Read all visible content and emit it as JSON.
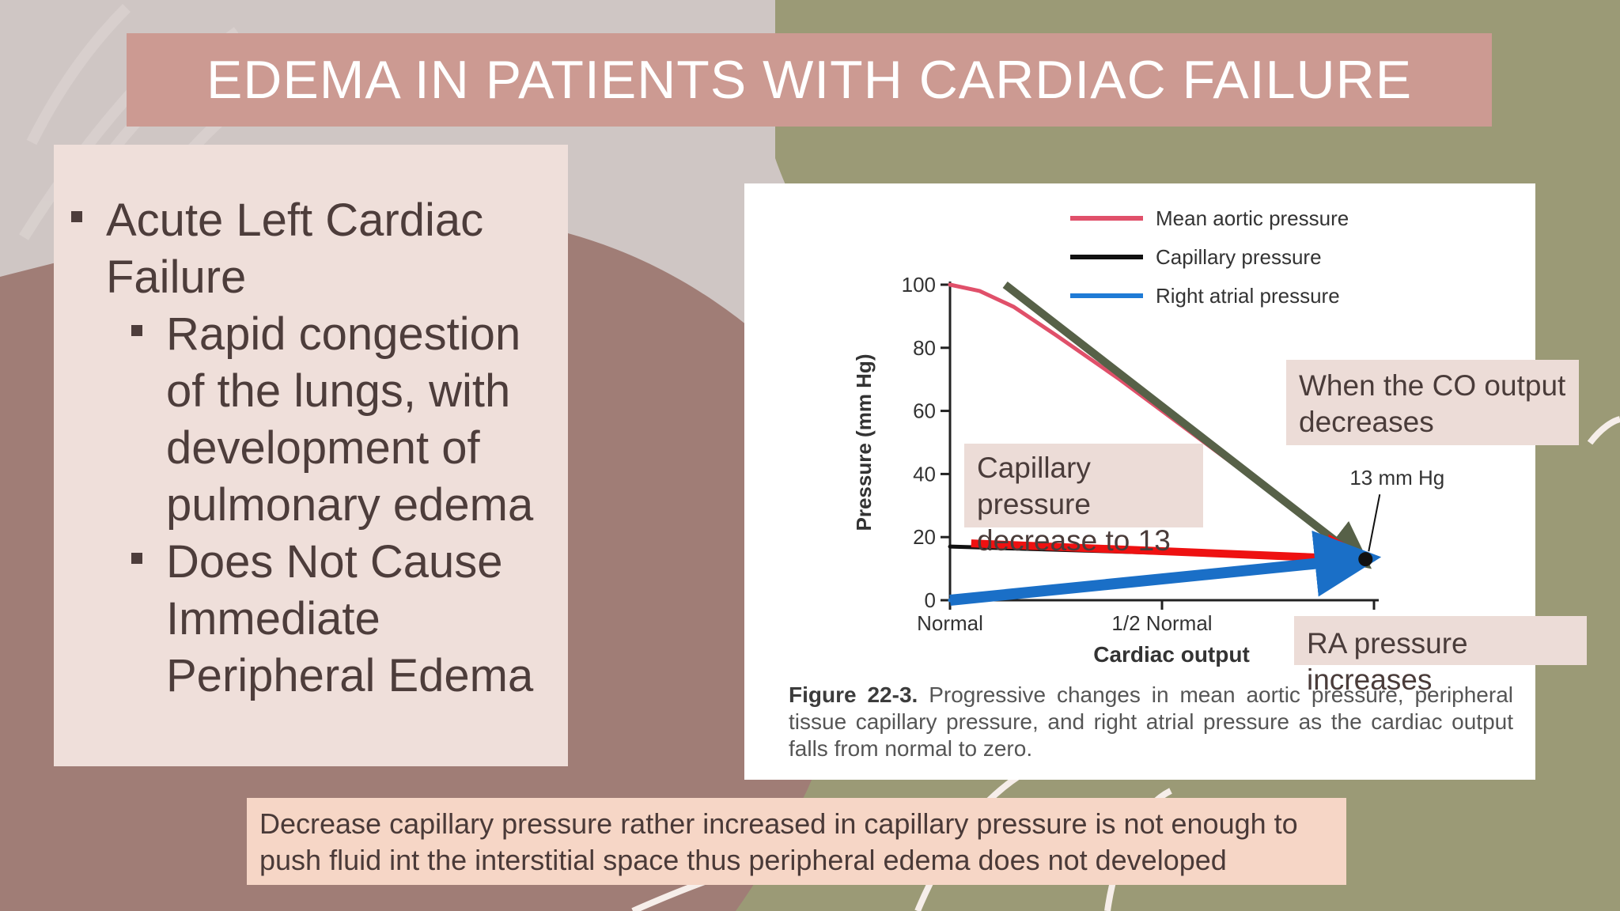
{
  "slide": {
    "title": "EDEMA IN PATIENTS WITH CARDIAC FAILURE",
    "colors": {
      "title_bar": "#cc9a92",
      "left_panel": "#efdfda",
      "olive": "#9b9a76",
      "mauve": "#a07d76",
      "note_box": "#f6d6c6"
    }
  },
  "left_panel": {
    "level1": [
      {
        "text": "Acute Left Cardiac Failure"
      }
    ],
    "level2": [
      {
        "text": "Rapid congestion of the lungs, with development of pulmonary edema"
      },
      {
        "text": "Does Not Cause Immediate Peripheral Edema"
      }
    ]
  },
  "figure": {
    "legend": [
      "Mean aortic pressure",
      "Capillary pressure",
      "Right atrial pressure"
    ],
    "y_axis_label": "Pressure (mm Hg)",
    "x_axis_label": "Cardiac output",
    "x_ticks": [
      "Normal",
      "1/2 Normal"
    ],
    "y_ticks": [
      "0",
      "20",
      "40",
      "60",
      "80",
      "100"
    ],
    "point_annotation": "13 mm Hg",
    "caption_lead": "Figure 22-3.",
    "caption_body": "Progressive changes in mean aortic pressure, peripheral tissue capillary pressure, and right atrial pressure as the cardiac output falls from normal to zero."
  },
  "chart_data": {
    "type": "line",
    "x_categories": [
      "Normal",
      "1/2 Normal"
    ],
    "x_range": [
      1,
      0
    ],
    "ylabel": "Pressure (mm Hg)",
    "xlabel": "Cardiac output",
    "ylim": [
      0,
      100
    ],
    "y_ticks": [
      0,
      20,
      40,
      60,
      80,
      100
    ],
    "legend_position": "top-right",
    "series": [
      {
        "name": "Mean aortic pressure",
        "color": "#e0506a",
        "points": [
          [
            1.0,
            100
          ],
          [
            0.93,
            98
          ],
          [
            0.85,
            93
          ],
          [
            0.75,
            84
          ],
          [
            0.6,
            70
          ],
          [
            0.45,
            55
          ],
          [
            0.3,
            40
          ],
          [
            0.15,
            25
          ],
          [
            0.02,
            13
          ]
        ]
      },
      {
        "name": "Capillary pressure",
        "color": "#111111",
        "points": [
          [
            1.0,
            17
          ],
          [
            0.0,
            13
          ]
        ]
      },
      {
        "name": "Right atrial pressure",
        "color": "#1f7bd6",
        "points": [
          [
            1.0,
            0
          ],
          [
            0.0,
            13
          ]
        ]
      }
    ],
    "overlay_arrows": [
      {
        "color": "#576148",
        "from": [
          0.87,
          100
        ],
        "to": [
          0.02,
          13
        ]
      },
      {
        "color": "#ee1111",
        "from": [
          0.95,
          18
        ],
        "to": [
          0.02,
          13
        ]
      },
      {
        "color": "#1a6fc7",
        "from": [
          1.0,
          0
        ],
        "to": [
          0.02,
          13
        ]
      }
    ]
  },
  "callouts": {
    "co": "When the CO output decreases",
    "capillary": "Capillary pressure decrease to 13",
    "ra": "RA pressure increases"
  },
  "bottom_note": "Decrease capillary pressure rather increased in capillary pressure is not enough to push fluid int the interstitial space  thus peripheral edema does not developed"
}
